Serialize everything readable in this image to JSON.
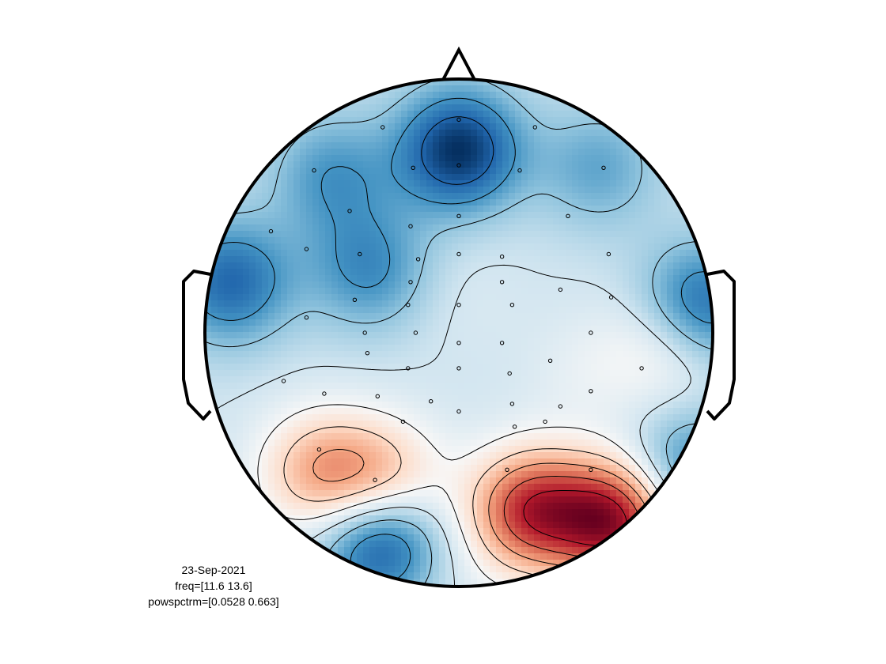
{
  "chart_data": {
    "type": "heatmap",
    "title": "",
    "colormap": [
      "#053061",
      "#2166ac",
      "#4393c3",
      "#92c5de",
      "#d1e5f0",
      "#f7f7f7",
      "#fddbc7",
      "#f4a582",
      "#d6604d",
      "#b2182b",
      "#67001f"
    ],
    "value_range": [
      0.0528,
      0.663
    ],
    "contour_levels": 9,
    "sources": [
      {
        "x": 0.0,
        "y": 0.72,
        "v": -0.75
      },
      {
        "x": -0.5,
        "y": 0.62,
        "v": -0.35
      },
      {
        "x": 0.55,
        "y": 0.65,
        "v": -0.3
      },
      {
        "x": -0.9,
        "y": 0.2,
        "v": -0.55
      },
      {
        "x": -0.35,
        "y": 0.25,
        "v": -0.4
      },
      {
        "x": 0.0,
        "y": 0.15,
        "v": 0.05
      },
      {
        "x": 0.95,
        "y": 0.1,
        "v": -0.6
      },
      {
        "x": 0.83,
        "y": -0.05,
        "v": 0.3
      },
      {
        "x": 0.5,
        "y": -0.15,
        "v": 0.1
      },
      {
        "x": -0.55,
        "y": -0.55,
        "v": 0.5
      },
      {
        "x": -0.3,
        "y": -0.6,
        "v": 0.55
      },
      {
        "x": -0.31,
        "y": -0.81,
        "v": -0.75
      },
      {
        "x": 0.28,
        "y": -0.7,
        "v": 0.85
      },
      {
        "x": 0.62,
        "y": -0.74,
        "v": 1.0
      },
      {
        "x": -0.85,
        "y": -0.4,
        "v": 0.0
      },
      {
        "x": 0.9,
        "y": -0.55,
        "v": -0.45
      },
      {
        "x": 0.0,
        "y": -0.95,
        "v": 0.05
      }
    ],
    "channels": [
      [
        -0.3,
        0.81
      ],
      [
        0.0,
        0.84
      ],
      [
        0.3,
        0.81
      ],
      [
        -0.57,
        0.64
      ],
      [
        -0.18,
        0.65
      ],
      [
        0.0,
        0.66
      ],
      [
        0.24,
        0.64
      ],
      [
        0.57,
        0.65
      ],
      [
        -0.43,
        0.48
      ],
      [
        -0.19,
        0.42
      ],
      [
        0.0,
        0.46
      ],
      [
        0.43,
        0.46
      ],
      [
        -0.74,
        0.4
      ],
      [
        -0.6,
        0.33
      ],
      [
        -0.39,
        0.31
      ],
      [
        -0.16,
        0.29
      ],
      [
        0.0,
        0.31
      ],
      [
        0.17,
        0.3
      ],
      [
        0.59,
        0.31
      ],
      [
        -0.19,
        0.2
      ],
      [
        0.17,
        0.2
      ],
      [
        0.4,
        0.17
      ],
      [
        -0.41,
        0.13
      ],
      [
        -0.2,
        0.11
      ],
      [
        0.0,
        0.11
      ],
      [
        0.21,
        0.11
      ],
      [
        0.6,
        0.14
      ],
      [
        -0.6,
        0.06
      ],
      [
        -0.37,
        0.0
      ],
      [
        -0.17,
        0.0
      ],
      [
        0.0,
        -0.04
      ],
      [
        0.17,
        -0.04
      ],
      [
        0.52,
        0.0
      ],
      [
        -0.36,
        -0.08
      ],
      [
        -0.2,
        -0.14
      ],
      [
        0.0,
        -0.14
      ],
      [
        0.2,
        -0.16
      ],
      [
        0.36,
        -0.11
      ],
      [
        0.72,
        -0.14
      ],
      [
        -0.69,
        -0.19
      ],
      [
        -0.53,
        -0.24
      ],
      [
        -0.32,
        -0.25
      ],
      [
        -0.11,
        -0.27
      ],
      [
        0.0,
        -0.31
      ],
      [
        0.21,
        -0.28
      ],
      [
        0.4,
        -0.29
      ],
      [
        0.52,
        -0.23
      ],
      [
        -0.22,
        -0.35
      ],
      [
        0.22,
        -0.37
      ],
      [
        0.34,
        -0.35
      ],
      [
        -0.55,
        -0.46
      ],
      [
        0.19,
        -0.54
      ],
      [
        0.52,
        -0.54
      ],
      [
        -0.33,
        -0.58
      ]
    ]
  },
  "annotation": {
    "date": "23-Sep-2021",
    "freq": "freq=[11.6 13.6]",
    "range": "powspctrm=[0.0528 0.663]"
  }
}
